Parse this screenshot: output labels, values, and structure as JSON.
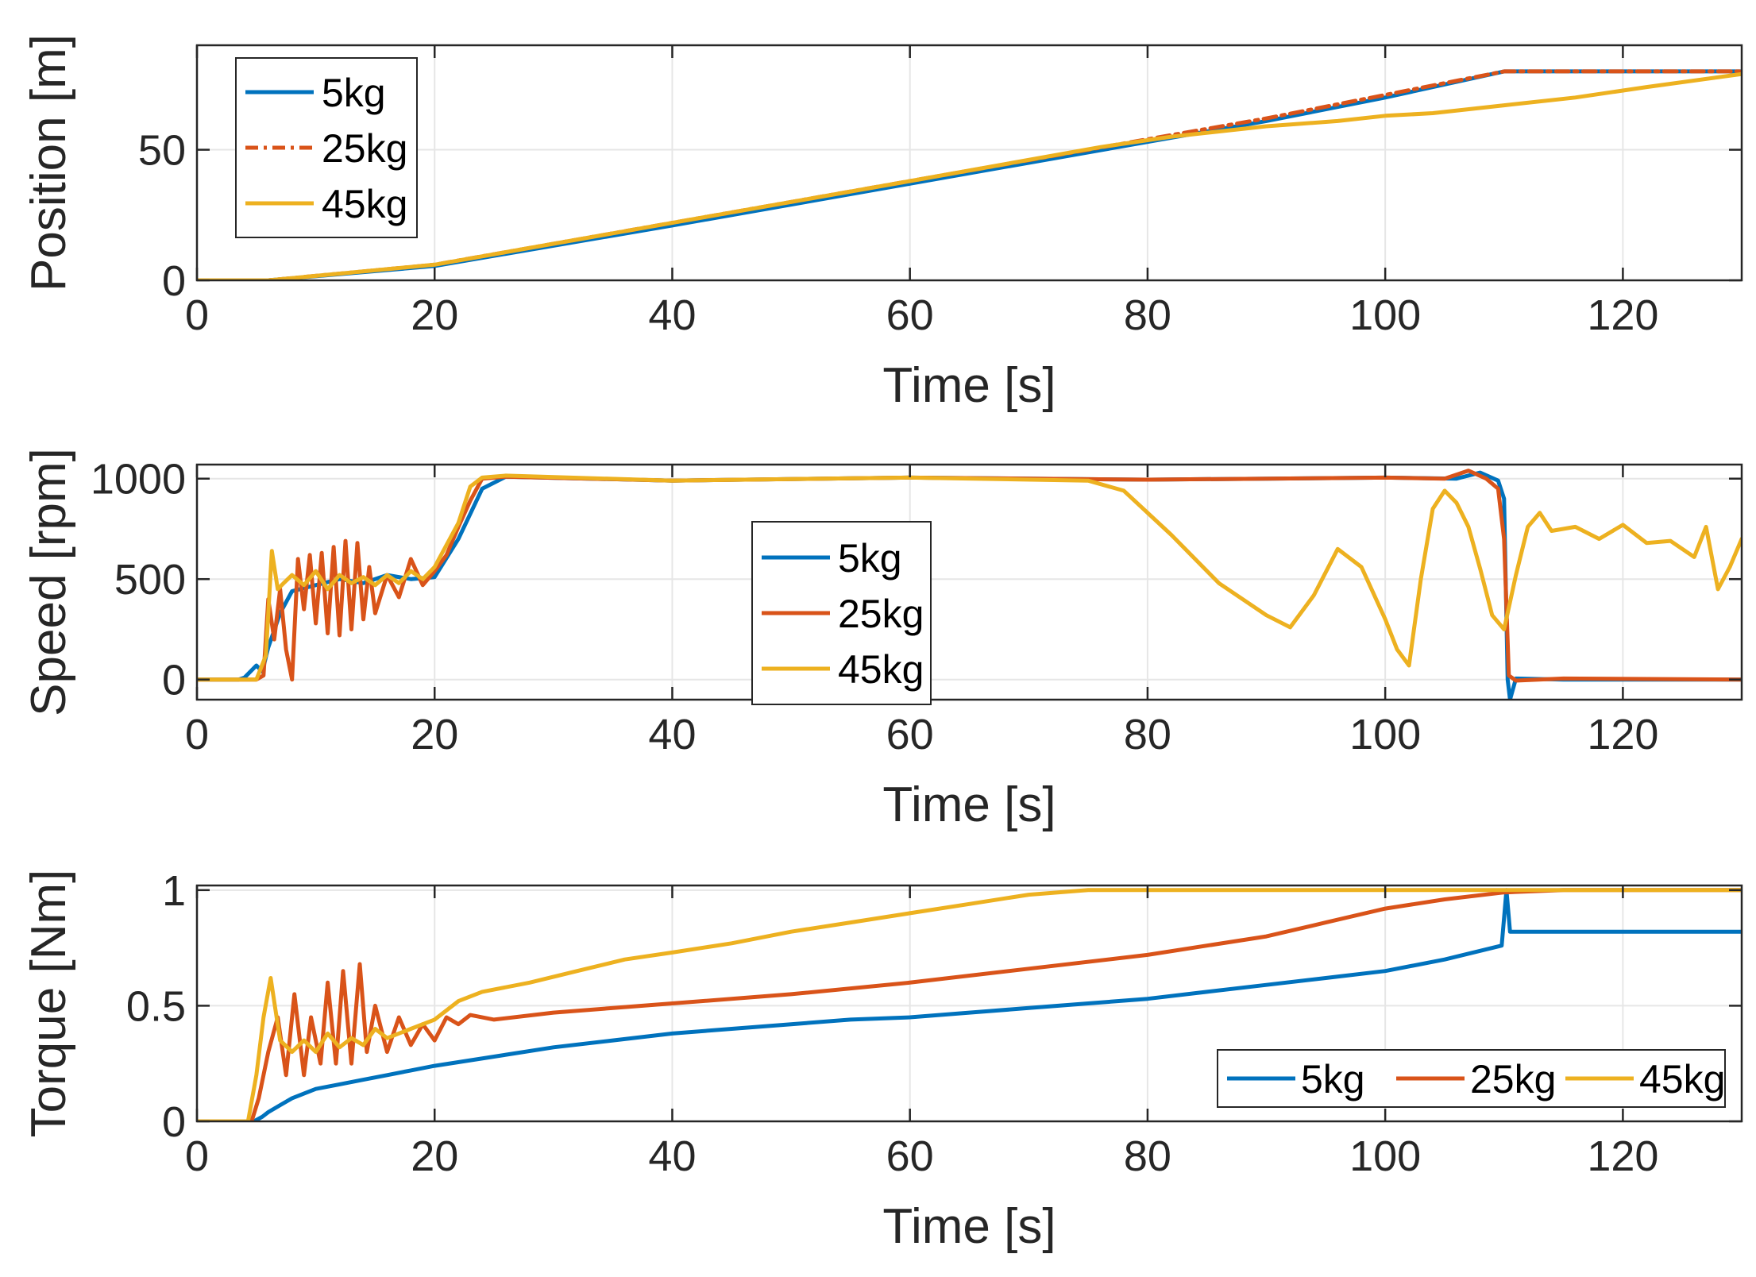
{
  "chart_data": [
    {
      "type": "line",
      "title": "",
      "xlabel": "Time [s]",
      "ylabel": "Position [m]",
      "xlim": [
        0,
        130
      ],
      "ylim": [
        0,
        90
      ],
      "xticks": [
        0,
        20,
        40,
        60,
        80,
        100,
        120
      ],
      "yticks": [
        0,
        50
      ],
      "grid": true,
      "legend": {
        "position": "top-left",
        "orientation": "vertical"
      },
      "series": [
        {
          "name": "5kg",
          "color": "#0072BD",
          "style": "solid",
          "x": [
            0,
            6,
            20,
            40,
            60,
            80,
            90,
            100,
            110,
            130
          ],
          "y": [
            0,
            0,
            5.5,
            21,
            37,
            53,
            61,
            70,
            80,
            80
          ]
        },
        {
          "name": "25kg",
          "color": "#D95319",
          "style": "dashdot",
          "x": [
            0,
            6,
            20,
            40,
            60,
            80,
            90,
            100,
            110,
            130
          ],
          "y": [
            0,
            0,
            6,
            22,
            38,
            54,
            62,
            71,
            80,
            80
          ]
        },
        {
          "name": "45kg",
          "color": "#EDB120",
          "style": "solid",
          "x": [
            0,
            6,
            20,
            40,
            60,
            76,
            82,
            90,
            96,
            100,
            104,
            110,
            116,
            122,
            130
          ],
          "y": [
            0,
            0,
            6,
            22,
            38,
            51,
            55,
            59,
            61,
            63,
            64,
            67,
            70,
            74,
            79
          ]
        }
      ]
    },
    {
      "type": "line",
      "title": "",
      "xlabel": "Time [s]",
      "ylabel": "Speed [rpm]",
      "xlim": [
        0,
        130
      ],
      "ylim": [
        -100,
        1070
      ],
      "xticks": [
        0,
        20,
        40,
        60,
        80,
        100,
        120
      ],
      "yticks": [
        0,
        500,
        1000
      ],
      "grid": true,
      "legend": {
        "position": "center",
        "orientation": "vertical"
      },
      "series": [
        {
          "name": "5kg",
          "color": "#0072BD",
          "style": "solid",
          "x": [
            0,
            3.5,
            4,
            5,
            5.5,
            6,
            7,
            8,
            10,
            12,
            14,
            16,
            18,
            20,
            22,
            24,
            26,
            40,
            60,
            80,
            100,
            106,
            108,
            109.5,
            110,
            110.3,
            110.5,
            111,
            115,
            130
          ],
          "y": [
            0,
            0,
            10,
            70,
            40,
            160,
            330,
            440,
            470,
            500,
            480,
            520,
            500,
            510,
            700,
            950,
            1010,
            990,
            1005,
            995,
            1005,
            1000,
            1030,
            990,
            900,
            0,
            -100,
            5,
            0,
            0
          ]
        },
        {
          "name": "25kg",
          "color": "#D95319",
          "style": "solid",
          "x": [
            0,
            5,
            5.6,
            6,
            6.5,
            7,
            7.5,
            8,
            8.5,
            9,
            9.5,
            10,
            10.5,
            11,
            11.5,
            12,
            12.5,
            13,
            13.5,
            14,
            14.5,
            15,
            16,
            17,
            18,
            19,
            20,
            21,
            22,
            23,
            24,
            26,
            40,
            60,
            80,
            100,
            105,
            107,
            108.5,
            109.5,
            110,
            110.4,
            111,
            115,
            130
          ],
          "y": [
            0,
            0,
            20,
            400,
            200,
            450,
            150,
            0,
            600,
            350,
            620,
            280,
            630,
            230,
            660,
            220,
            690,
            250,
            680,
            300,
            560,
            330,
            520,
            410,
            600,
            470,
            540,
            620,
            760,
            890,
            1000,
            1010,
            990,
            1005,
            995,
            1005,
            1000,
            1040,
            1000,
            950,
            700,
            20,
            -5,
            5,
            0
          ]
        },
        {
          "name": "45kg",
          "color": "#EDB120",
          "style": "solid",
          "x": [
            0,
            5,
            5.8,
            6.3,
            6.8,
            7.3,
            8,
            9,
            10,
            11,
            12,
            13,
            14,
            15,
            16,
            17,
            18,
            19,
            20,
            22,
            23,
            24,
            26,
            40,
            60,
            75,
            78,
            82,
            86,
            90,
            92,
            94,
            96,
            98,
            100,
            101,
            102,
            103,
            104,
            105,
            106,
            107,
            108,
            109,
            110,
            111,
            112,
            113,
            114,
            116,
            118,
            120,
            122,
            124,
            126,
            127,
            128,
            129,
            130
          ],
          "y": [
            0,
            0,
            120,
            640,
            450,
            480,
            520,
            470,
            540,
            450,
            520,
            480,
            510,
            470,
            520,
            480,
            540,
            500,
            560,
            780,
            960,
            1005,
            1015,
            990,
            1005,
            990,
            940,
            720,
            480,
            320,
            260,
            420,
            650,
            560,
            300,
            150,
            70,
            500,
            850,
            940,
            880,
            760,
            550,
            320,
            250,
            520,
            760,
            830,
            740,
            760,
            700,
            770,
            680,
            690,
            610,
            760,
            450,
            560,
            700
          ]
        }
      ]
    },
    {
      "type": "line",
      "title": "",
      "xlabel": "Time [s]",
      "ylabel": "Torque [Nm]",
      "xlim": [
        0,
        130
      ],
      "ylim": [
        0,
        1.02
      ],
      "xticks": [
        0,
        20,
        40,
        60,
        80,
        100,
        120
      ],
      "yticks": [
        0,
        0.5,
        1
      ],
      "ytick_labels": [
        "0",
        "0.5",
        "1"
      ],
      "grid": true,
      "legend": {
        "position": "bottom-right",
        "orientation": "horizontal"
      },
      "series": [
        {
          "name": "5kg",
          "color": "#0072BD",
          "style": "solid",
          "x": [
            0,
            4.8,
            5.5,
            6,
            7,
            8,
            10,
            12,
            14,
            16,
            18,
            20,
            25,
            30,
            35,
            40,
            45,
            50,
            55,
            60,
            65,
            70,
            75,
            80,
            85,
            90,
            95,
            100,
            105,
            109.8,
            110.2,
            110.5,
            111,
            130
          ],
          "y": [
            0,
            0,
            0.02,
            0.04,
            0.07,
            0.1,
            0.14,
            0.16,
            0.18,
            0.2,
            0.22,
            0.24,
            0.28,
            0.32,
            0.35,
            0.38,
            0.4,
            0.42,
            0.44,
            0.45,
            0.47,
            0.49,
            0.51,
            0.53,
            0.56,
            0.59,
            0.62,
            0.65,
            0.7,
            0.76,
            1.0,
            0.82,
            0.82,
            0.82
          ]
        },
        {
          "name": "25kg",
          "color": "#D95319",
          "style": "solid",
          "x": [
            0,
            4.6,
            5.2,
            6,
            6.8,
            7.5,
            8.2,
            9,
            9.6,
            10.4,
            11,
            11.7,
            12.3,
            13,
            13.7,
            14.3,
            15,
            16,
            17,
            18,
            19,
            20,
            21,
            22,
            23,
            25,
            30,
            40,
            50,
            60,
            70,
            80,
            85,
            90,
            95,
            100,
            105,
            110,
            115,
            130
          ],
          "y": [
            0,
            0,
            0.1,
            0.3,
            0.45,
            0.2,
            0.55,
            0.2,
            0.45,
            0.25,
            0.6,
            0.25,
            0.65,
            0.25,
            0.68,
            0.3,
            0.5,
            0.3,
            0.45,
            0.33,
            0.42,
            0.35,
            0.45,
            0.42,
            0.46,
            0.44,
            0.47,
            0.51,
            0.55,
            0.6,
            0.66,
            0.72,
            0.76,
            0.8,
            0.86,
            0.92,
            0.96,
            0.99,
            1.0,
            1.0
          ]
        },
        {
          "name": "45kg",
          "color": "#EDB120",
          "style": "solid",
          "x": [
            0,
            4.3,
            5,
            5.6,
            6.2,
            7,
            8,
            9,
            10,
            11,
            12,
            13,
            14,
            15,
            16,
            18,
            20,
            22,
            24,
            28,
            32,
            36,
            40,
            45,
            50,
            55,
            60,
            65,
            70,
            75,
            80,
            90,
            100,
            110,
            120,
            130
          ],
          "y": [
            0,
            0,
            0.2,
            0.45,
            0.62,
            0.35,
            0.3,
            0.35,
            0.3,
            0.38,
            0.32,
            0.36,
            0.33,
            0.4,
            0.36,
            0.4,
            0.44,
            0.52,
            0.56,
            0.6,
            0.65,
            0.7,
            0.73,
            0.77,
            0.82,
            0.86,
            0.9,
            0.94,
            0.98,
            1.0,
            1.0,
            1.0,
            1.0,
            1.0,
            1.0,
            1.0
          ]
        }
      ]
    }
  ]
}
